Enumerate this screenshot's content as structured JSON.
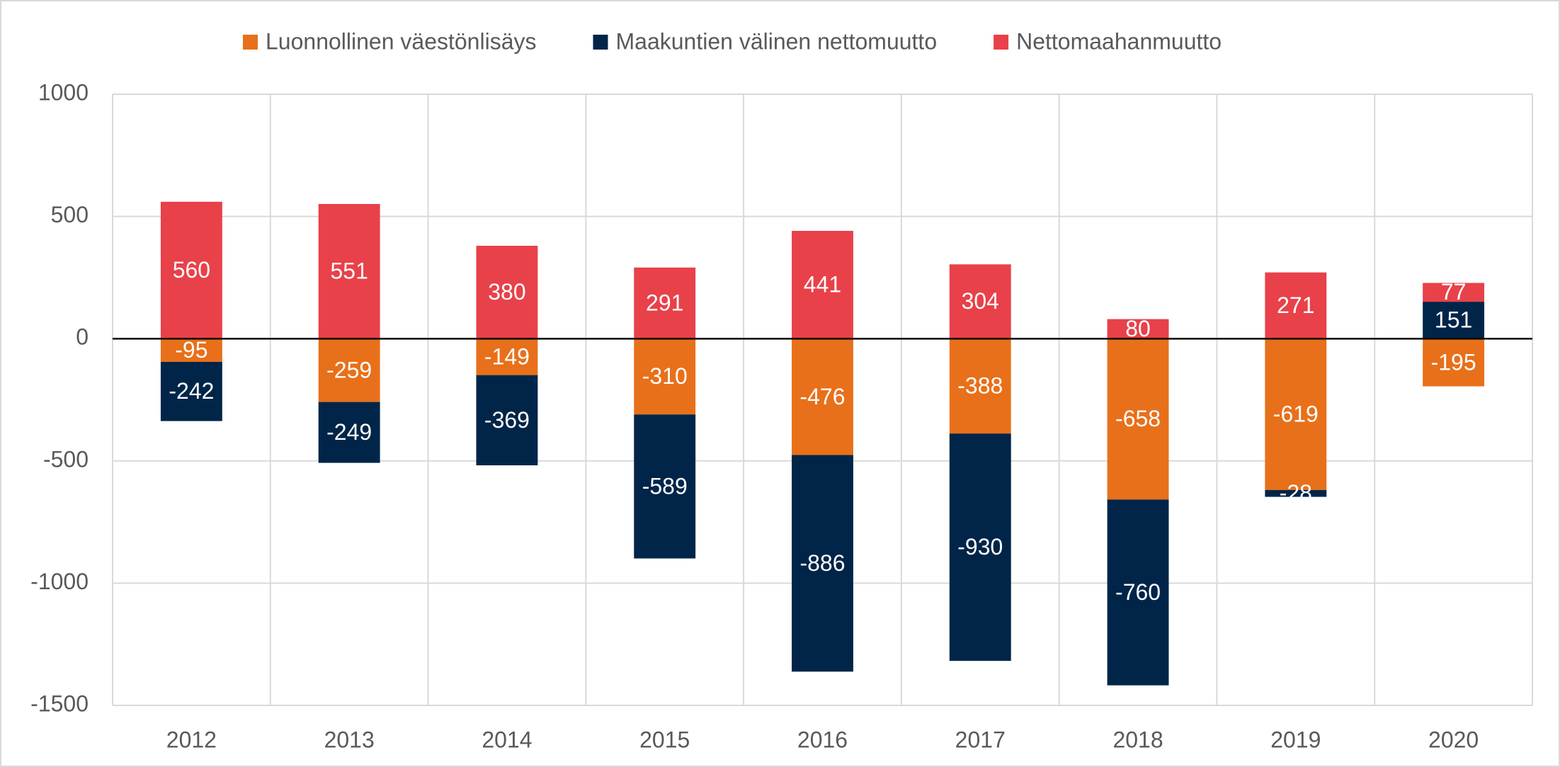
{
  "chart_data": {
    "type": "stacked_bar",
    "categories": [
      "2012",
      "2013",
      "2014",
      "2015",
      "2016",
      "2017",
      "2018",
      "2019",
      "2020"
    ],
    "series": [
      {
        "name": "Luonnollinen väestönlisäys",
        "color": "#e8701a",
        "values": [
          -95,
          -259,
          -149,
          -310,
          -476,
          -388,
          -658,
          -619,
          -195
        ]
      },
      {
        "name": "Maakuntien välinen nettomuutto",
        "color": "#002548",
        "values": [
          -242,
          -249,
          -369,
          -589,
          -886,
          -930,
          -760,
          -28,
          151
        ]
      },
      {
        "name": "Nettomaahanmuutto",
        "color": "#e8414a",
        "values": [
          560,
          551,
          380,
          291,
          441,
          304,
          80,
          271,
          77
        ]
      }
    ],
    "ylim": [
      -1500,
      1000
    ],
    "yticks": [
      -1500,
      -1000,
      -500,
      0,
      500,
      1000
    ],
    "grid": true,
    "legend": "top"
  }
}
